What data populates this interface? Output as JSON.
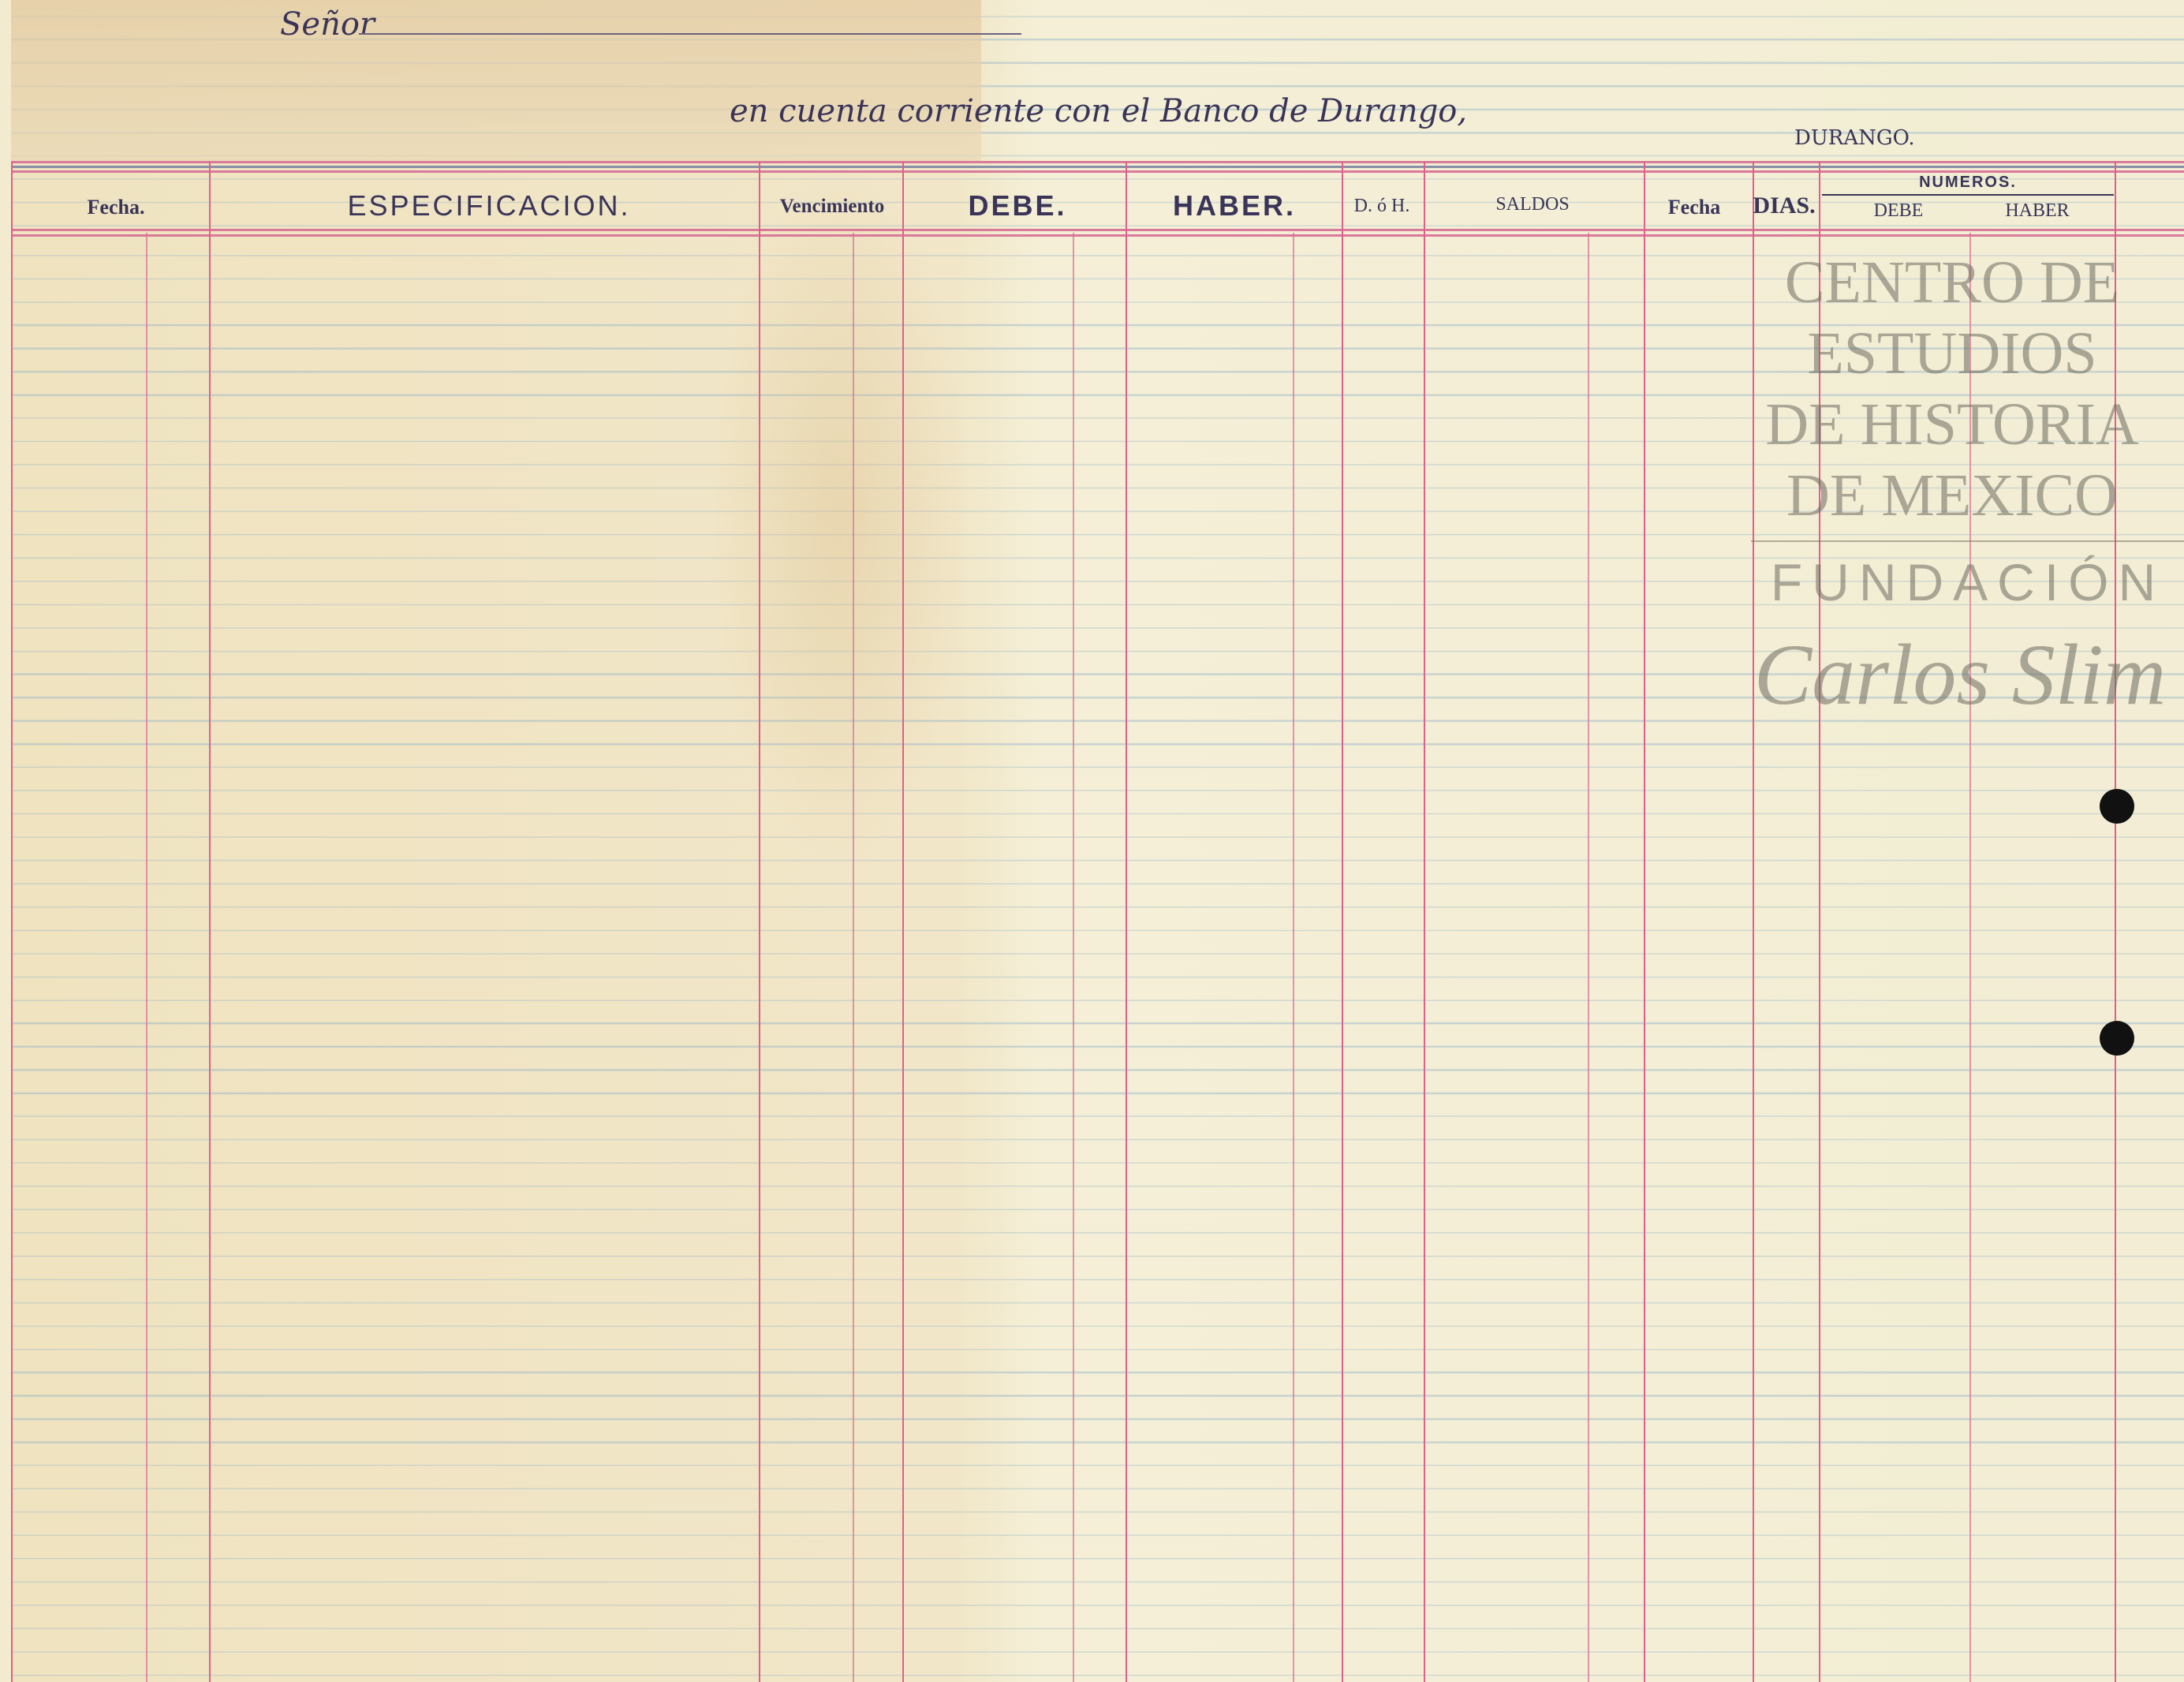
{
  "header": {
    "senor_label": "Señor",
    "account_line": "en cuenta corriente con el Banco de Durango,",
    "city": "DURANGO."
  },
  "columns": {
    "fecha": "Fecha.",
    "especificacion": "ESPECIFICACION.",
    "vencimiento": "Vencimiento",
    "debe": "DEBE.",
    "haber": "HABER.",
    "d_o_h": "D. ó H.",
    "saldos": "SALDOS",
    "fecha2": "Fecha",
    "dias": "DIAS.",
    "numeros": "NUMEROS.",
    "numeros_debe": "DEBE",
    "numeros_haber": "HABER"
  },
  "watermark": {
    "lines": [
      "CENTRO DE",
      "ESTUDIOS",
      "DE HISTORIA",
      "DE MEXICO"
    ],
    "fundacion": "FUNDACIÓN",
    "signature": "Carlos Slim"
  }
}
